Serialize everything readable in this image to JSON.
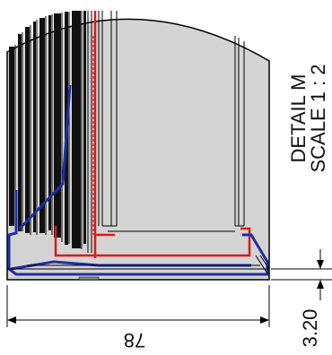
{
  "detail": {
    "title": "DETAIL M",
    "scale": "SCALE 1 : 2"
  },
  "dimensions": {
    "width": "78",
    "thickness": "3.20"
  },
  "colors": {
    "outline": "#000000",
    "part_fill": "#d3d3d3",
    "blue_section": "#1f2fa8",
    "red_section": "#e01818",
    "background": "#ffffff"
  }
}
